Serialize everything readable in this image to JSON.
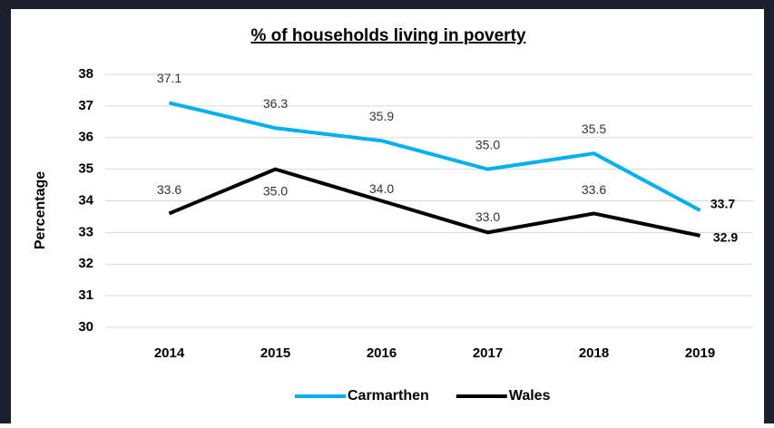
{
  "chart_data": {
    "type": "line",
    "title": "% of households living in poverty",
    "y_label": "Percentage",
    "categories": [
      "2014",
      "2015",
      "2016",
      "2017",
      "2018",
      "2019"
    ],
    "series": [
      {
        "name": "Carmarthen",
        "color": "#00b0f0",
        "values": [
          37.1,
          36.3,
          35.9,
          35.0,
          35.5,
          33.7
        ],
        "value_labels": [
          "37.1",
          "36.3",
          "35.9",
          "35.0",
          "35.5",
          "33.7"
        ]
      },
      {
        "name": "Wales",
        "color": "#000000",
        "values": [
          33.6,
          35.0,
          34.0,
          33.0,
          33.6,
          32.9
        ],
        "value_labels": [
          "33.6",
          "35.0",
          "34.0",
          "33.0",
          "33.6",
          "32.9"
        ]
      }
    ],
    "ylim": [
      30,
      38
    ],
    "yticks": [
      30,
      31,
      32,
      33,
      34,
      35,
      36,
      37,
      38
    ],
    "grid": true,
    "legend": "bottom"
  }
}
